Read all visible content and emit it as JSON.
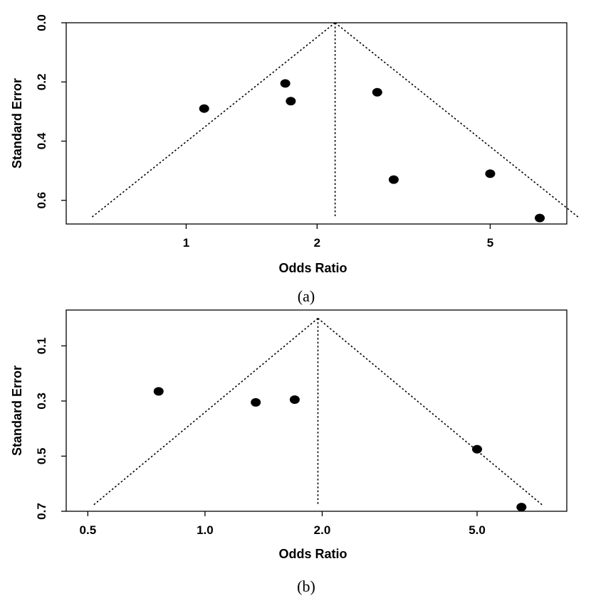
{
  "chart_data": [
    {
      "type": "scatter",
      "panel_label": "(a)",
      "xlabel": "Odds Ratio",
      "ylabel": "Standard Error",
      "x_scale": "log",
      "y_reversed": true,
      "xticks": [
        1,
        2,
        5
      ],
      "xtick_labels": [
        "1",
        "2",
        "5"
      ],
      "yticks": [
        0.0,
        0.2,
        0.4,
        0.6
      ],
      "ytick_labels": [
        "0.0",
        "0.2",
        "0.4",
        "0.6"
      ],
      "xlim": [
        0.53,
        7.5
      ],
      "ylim": [
        0.0,
        0.68
      ],
      "pooled_or": 2.2,
      "funnel_se_max": 0.66,
      "points": [
        {
          "x": 1.1,
          "y": 0.29
        },
        {
          "x": 1.69,
          "y": 0.205
        },
        {
          "x": 1.74,
          "y": 0.265
        },
        {
          "x": 2.75,
          "y": 0.235
        },
        {
          "x": 3.0,
          "y": 0.53
        },
        {
          "x": 5.0,
          "y": 0.51
        },
        {
          "x": 6.5,
          "y": 0.66
        }
      ],
      "grid": false
    },
    {
      "type": "scatter",
      "panel_label": "(b)",
      "xlabel": "Odds Ratio",
      "ylabel": "Standard Error",
      "x_scale": "log",
      "y_reversed": true,
      "xticks": [
        0.5,
        1.0,
        2.0,
        5.0
      ],
      "xtick_labels": [
        "0.5",
        "1.0",
        "2.0",
        "5.0"
      ],
      "yticks": [
        0.1,
        0.3,
        0.5,
        0.7
      ],
      "ytick_labels": [
        "0.1",
        "0.3",
        "0.5",
        "0.7"
      ],
      "xlim": [
        0.44,
        8.5
      ],
      "ylim": [
        -0.03,
        0.7
      ],
      "pooled_or": 1.95,
      "funnel_se_max": 0.68,
      "points": [
        {
          "x": 0.76,
          "y": 0.265
        },
        {
          "x": 1.35,
          "y": 0.305
        },
        {
          "x": 1.7,
          "y": 0.295
        },
        {
          "x": 5.0,
          "y": 0.475
        },
        {
          "x": 6.5,
          "y": 0.685
        }
      ],
      "grid": false
    }
  ]
}
